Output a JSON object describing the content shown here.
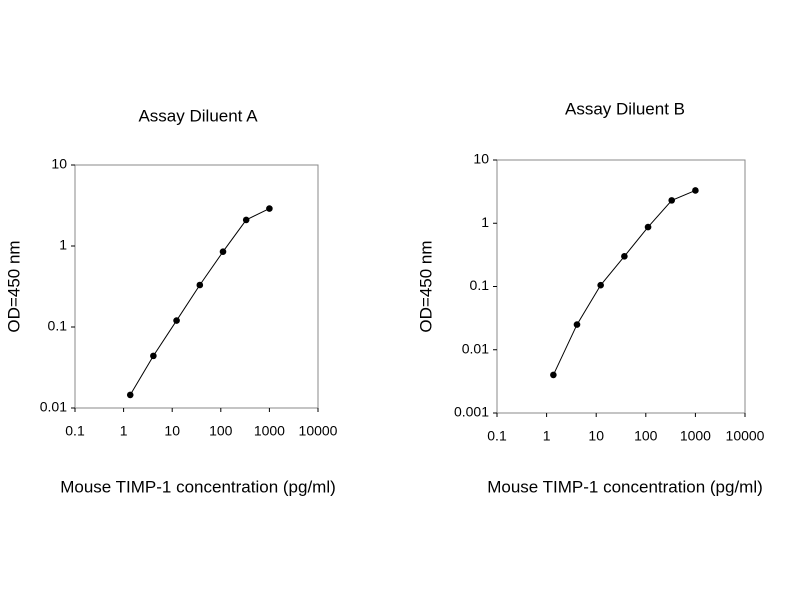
{
  "chart_data": [
    {
      "type": "line",
      "title": "Assay Diluent A",
      "x_label": "Mouse TIMP-1 concentration (pg/ml)",
      "y_label": "OD=450 nm",
      "x": [
        1.37,
        4.1,
        12.3,
        37,
        111,
        333,
        1000
      ],
      "series": [
        {
          "color": "#000000",
          "values": [
            0.0145,
            0.044,
            0.12,
            0.33,
            0.85,
            2.1,
            2.9
          ]
        }
      ],
      "xlim": [
        0.1,
        10000
      ],
      "xticks": [
        0.1,
        1,
        10,
        100,
        1000,
        10000
      ],
      "ylim": [
        0.01,
        10
      ],
      "yticks": [
        0.01,
        0.1,
        1,
        10
      ],
      "log_x": true,
      "log_y": true,
      "grid": false
    },
    {
      "type": "line",
      "title": "Assay Diluent B",
      "x_label": "Mouse TIMP-1 concentration (pg/ml)",
      "y_label": "OD=450 nm",
      "x": [
        1.37,
        4.1,
        12.3,
        37,
        111,
        333,
        1000
      ],
      "series": [
        {
          "color": "#000000",
          "values": [
            0.004,
            0.025,
            0.105,
            0.3,
            0.87,
            2.3,
            3.3
          ]
        }
      ],
      "xlim": [
        0.1,
        10000
      ],
      "xticks": [
        0.1,
        1,
        10,
        100,
        1000,
        10000
      ],
      "ylim": [
        0.001,
        10
      ],
      "yticks": [
        0.001,
        0.01,
        0.1,
        1,
        10
      ],
      "log_x": true,
      "log_y": true,
      "grid": false
    }
  ]
}
